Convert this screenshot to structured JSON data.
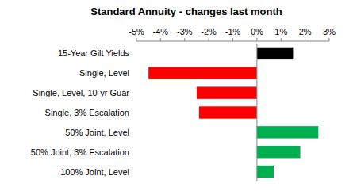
{
  "chart_data": {
    "type": "bar",
    "orientation": "horizontal",
    "title": "Standard Annuity - changes last month",
    "categories": [
      "15-Year Gilt Yields",
      "Single, Level",
      "Single, Level, 10-yr Guar",
      "Single, 3% Escalation",
      "50% Joint, Level",
      "50% Joint, 3% Escalation",
      "100% Joint, Level"
    ],
    "values": [
      1.5,
      -4.5,
      -2.5,
      -2.4,
      2.55,
      1.8,
      0.7
    ],
    "colors": [
      "#000000",
      "#ff0000",
      "#ff0000",
      "#ff0000",
      "#00b050",
      "#00b050",
      "#00b050"
    ],
    "xlim": [
      -5,
      3
    ],
    "xticks": [
      {
        "value": -5,
        "label": "-5%"
      },
      {
        "value": -4,
        "label": "-4%"
      },
      {
        "value": -3,
        "label": "-3%"
      },
      {
        "value": -2,
        "label": "-2%"
      },
      {
        "value": -1,
        "label": "-1%"
      },
      {
        "value": 0,
        "label": "0%"
      },
      {
        "value": 1,
        "label": "1%"
      },
      {
        "value": 2,
        "label": "2%"
      },
      {
        "value": 3,
        "label": "3%"
      }
    ],
    "grid": false
  }
}
